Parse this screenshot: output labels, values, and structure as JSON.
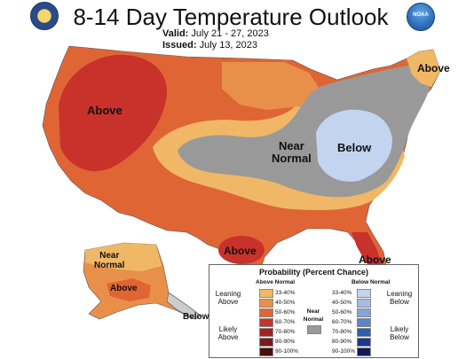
{
  "title": "8-14 Day Temperature Outlook",
  "valid_label": "Valid:",
  "valid_value": "July 21 - 27, 2023",
  "issued_label": "Issued:",
  "issued_value": "July 13, 2023",
  "map_labels": {
    "above_west": "Above",
    "above_northeast": "Above",
    "near_normal_central_1": "Near",
    "near_normal_central_2": "Normal",
    "below_ohio": "Below",
    "above_texas": "Above",
    "above_florida": "Above",
    "alaska_near_1": "Near",
    "alaska_near_2": "Normal",
    "alaska_above": "Above",
    "alaska_below": "Below"
  },
  "legend": {
    "title": "Probability (Percent Chance)",
    "above_header": "Above Normal",
    "below_header": "Below Normal",
    "leaning_above_1": "Leaning",
    "leaning_above_2": "Above",
    "likely_above_1": "Likely",
    "likely_above_2": "Above",
    "near_1": "Near",
    "near_2": "Normal",
    "leaning_below_1": "Leaning",
    "leaning_below_2": "Below",
    "likely_below_1": "Likely",
    "likely_below_2": "Below",
    "above_bins": [
      {
        "label": "33-40%",
        "color": "#f0b866"
      },
      {
        "label": "40-50%",
        "color": "#e8904a"
      },
      {
        "label": "50-60%",
        "color": "#e06535"
      },
      {
        "label": "60-70%",
        "color": "#c8322b"
      },
      {
        "label": "70-80%",
        "color": "#a32024"
      },
      {
        "label": "80-90%",
        "color": "#7d1a1d"
      },
      {
        "label": "90-100%",
        "color": "#4a0e10"
      }
    ],
    "near_color": "#999999",
    "below_bins": [
      {
        "label": "33-40%",
        "color": "#c2d4ef"
      },
      {
        "label": "40-50%",
        "color": "#a4bde3"
      },
      {
        "label": "50-60%",
        "color": "#85a5d8"
      },
      {
        "label": "60-70%",
        "color": "#5b86c8"
      },
      {
        "label": "70-80%",
        "color": "#2e5fae"
      },
      {
        "label": "80-90%",
        "color": "#1b3a8c"
      },
      {
        "label": "90-100%",
        "color": "#111b5a"
      }
    ]
  },
  "logos": {
    "left": "commerce-seal-icon",
    "right": "noaa-logo-icon",
    "right_text": "NOAA"
  }
}
